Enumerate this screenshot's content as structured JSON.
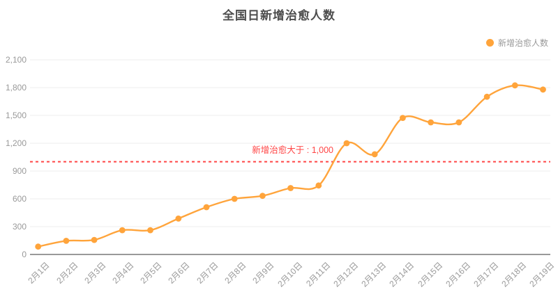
{
  "title": "全国日新增治愈人数",
  "legend": {
    "label": "新增治愈人数"
  },
  "annotation": {
    "text": "新增治愈大于 : 1,000"
  },
  "colors": {
    "series": "#ffa43b",
    "threshold": "#ff4545",
    "title_text": "#4d4d4d",
    "axis_text": "#999999",
    "axis_line": "#999999",
    "grid_line": "#eeeeee"
  },
  "chart_data": {
    "type": "line",
    "smooth": true,
    "title": "全国日新增治愈人数",
    "legend_position": "top-right",
    "grid": true,
    "categories": [
      "2月1日",
      "2月2日",
      "2月3日",
      "2月4日",
      "2月5日",
      "2月6日",
      "2月7日",
      "2月8日",
      "2月9日",
      "2月10日",
      "2月11日",
      "2月12日",
      "2月13日",
      "2月14日",
      "2月15日",
      "2月16日",
      "2月17日",
      "2月18日",
      "2月19日"
    ],
    "series": [
      {
        "name": "新增治愈人数",
        "color": "#ffa43b",
        "values": [
          85,
          147,
          157,
          262,
          262,
          387,
          510,
          600,
          632,
          716,
          744,
          1200,
          1081,
          1473,
          1425,
          1425,
          1701,
          1824,
          1779
        ]
      }
    ],
    "xlabel": "",
    "ylabel": "",
    "ylim": [
      0,
      2100
    ],
    "y_tick_step": 300,
    "y_tick_labels": [
      "0",
      "300",
      "600",
      "900",
      "1,200",
      "1,500",
      "1,800",
      "2,100"
    ],
    "threshold_line": {
      "value": 1000,
      "label": "新增治愈大于 : 1,000",
      "style": "dashed",
      "color": "#ff4545"
    }
  }
}
